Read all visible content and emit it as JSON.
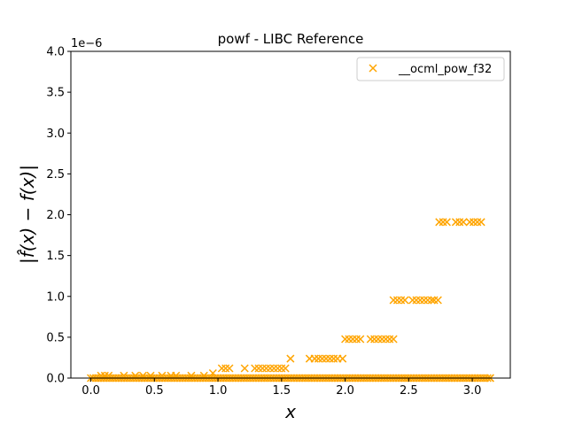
{
  "chart_data": {
    "type": "scatter",
    "title": "powf - LIBC Reference",
    "xlabel": "x",
    "ylabel": "|f̂(x) − f(x)|",
    "y_offset_text": "1e−6",
    "xlim": [
      -0.157,
      3.299
    ],
    "ylim": [
      0,
      4e-06
    ],
    "x_ticks": [
      {
        "value": 0.0,
        "label": "0.0"
      },
      {
        "value": 0.5,
        "label": "0.5"
      },
      {
        "value": 1.0,
        "label": "1.0"
      },
      {
        "value": 1.5,
        "label": "1.5"
      },
      {
        "value": 2.0,
        "label": "2.0"
      },
      {
        "value": 2.5,
        "label": "2.5"
      },
      {
        "value": 3.0,
        "label": "3.0"
      }
    ],
    "y_ticks": [
      {
        "value": 0.0,
        "label": "0.0"
      },
      {
        "value": 5e-07,
        "label": "0.5"
      },
      {
        "value": 1e-06,
        "label": "1.0"
      },
      {
        "value": 1.5e-06,
        "label": "1.5"
      },
      {
        "value": 2e-06,
        "label": "2.0"
      },
      {
        "value": 2.5e-06,
        "label": "2.5"
      },
      {
        "value": 3e-06,
        "label": "3.0"
      },
      {
        "value": 3.5e-06,
        "label": "3.5"
      },
      {
        "value": 4e-06,
        "label": "4.0"
      }
    ],
    "grid": false,
    "legend_position": "top-right",
    "marker": "x",
    "colors": {
      "series": "#FFA500"
    },
    "series": [
      {
        "name": "__ocml_pow_f32",
        "points": [
          {
            "x": 0.08,
            "y": 2.98e-08
          },
          {
            "x": 0.11,
            "y": 2.98e-08
          },
          {
            "x": 0.14,
            "y": 2.98e-08
          },
          {
            "x": 0.26,
            "y": 2.98e-08
          },
          {
            "x": 0.35,
            "y": 2.98e-08
          },
          {
            "x": 0.41,
            "y": 2.98e-08
          },
          {
            "x": 0.47,
            "y": 2.98e-08
          },
          {
            "x": 0.56,
            "y": 2.98e-08
          },
          {
            "x": 0.63,
            "y": 2.98e-08
          },
          {
            "x": 0.67,
            "y": 2.98e-08
          },
          {
            "x": 0.79,
            "y": 2.98e-08
          },
          {
            "x": 0.89,
            "y": 2.98e-08
          },
          {
            "x": 0.96,
            "y": 5.96e-08
          },
          {
            "x": 1.03,
            "y": 1.19e-07
          },
          {
            "x": 1.06,
            "y": 1.19e-07
          },
          {
            "x": 1.09,
            "y": 1.19e-07
          },
          {
            "x": 1.21,
            "y": 1.19e-07
          },
          {
            "x": 1.29,
            "y": 1.19e-07
          },
          {
            "x": 1.32,
            "y": 1.19e-07
          },
          {
            "x": 1.35,
            "y": 1.19e-07
          },
          {
            "x": 1.38,
            "y": 1.19e-07
          },
          {
            "x": 1.41,
            "y": 1.19e-07
          },
          {
            "x": 1.44,
            "y": 1.19e-07
          },
          {
            "x": 1.47,
            "y": 1.19e-07
          },
          {
            "x": 1.5,
            "y": 1.19e-07
          },
          {
            "x": 1.53,
            "y": 1.19e-07
          },
          {
            "x": 1.57,
            "y": 2.38e-07
          },
          {
            "x": 1.72,
            "y": 2.38e-07
          },
          {
            "x": 1.76,
            "y": 2.38e-07
          },
          {
            "x": 1.79,
            "y": 2.38e-07
          },
          {
            "x": 1.82,
            "y": 2.38e-07
          },
          {
            "x": 1.85,
            "y": 2.38e-07
          },
          {
            "x": 1.88,
            "y": 2.38e-07
          },
          {
            "x": 1.91,
            "y": 2.38e-07
          },
          {
            "x": 1.94,
            "y": 2.38e-07
          },
          {
            "x": 1.98,
            "y": 2.38e-07
          },
          {
            "x": 2.0,
            "y": 4.77e-07
          },
          {
            "x": 2.03,
            "y": 4.77e-07
          },
          {
            "x": 2.06,
            "y": 4.77e-07
          },
          {
            "x": 2.09,
            "y": 4.77e-07
          },
          {
            "x": 2.12,
            "y": 4.77e-07
          },
          {
            "x": 2.2,
            "y": 4.77e-07
          },
          {
            "x": 2.23,
            "y": 4.77e-07
          },
          {
            "x": 2.26,
            "y": 4.77e-07
          },
          {
            "x": 2.29,
            "y": 4.77e-07
          },
          {
            "x": 2.32,
            "y": 4.77e-07
          },
          {
            "x": 2.35,
            "y": 4.77e-07
          },
          {
            "x": 2.38,
            "y": 4.77e-07
          },
          {
            "x": 2.38,
            "y": 9.54e-07
          },
          {
            "x": 2.41,
            "y": 9.54e-07
          },
          {
            "x": 2.44,
            "y": 9.54e-07
          },
          {
            "x": 2.47,
            "y": 9.54e-07
          },
          {
            "x": 2.53,
            "y": 9.54e-07
          },
          {
            "x": 2.56,
            "y": 9.54e-07
          },
          {
            "x": 2.59,
            "y": 9.54e-07
          },
          {
            "x": 2.62,
            "y": 9.54e-07
          },
          {
            "x": 2.65,
            "y": 9.54e-07
          },
          {
            "x": 2.68,
            "y": 9.54e-07
          },
          {
            "x": 2.7,
            "y": 9.54e-07
          },
          {
            "x": 2.73,
            "y": 9.54e-07
          },
          {
            "x": 2.74,
            "y": 1.91e-06
          },
          {
            "x": 2.77,
            "y": 1.91e-06
          },
          {
            "x": 2.8,
            "y": 1.91e-06
          },
          {
            "x": 2.87,
            "y": 1.91e-06
          },
          {
            "x": 2.9,
            "y": 1.91e-06
          },
          {
            "x": 2.93,
            "y": 1.91e-06
          },
          {
            "x": 2.98,
            "y": 1.91e-06
          },
          {
            "x": 3.01,
            "y": 1.91e-06
          },
          {
            "x": 3.04,
            "y": 1.91e-06
          },
          {
            "x": 3.07,
            "y": 1.91e-06
          }
        ],
        "baseline": {
          "x_start": 0.0,
          "x_end": 3.14159,
          "step": 0.02,
          "y": 0
        }
      }
    ]
  }
}
